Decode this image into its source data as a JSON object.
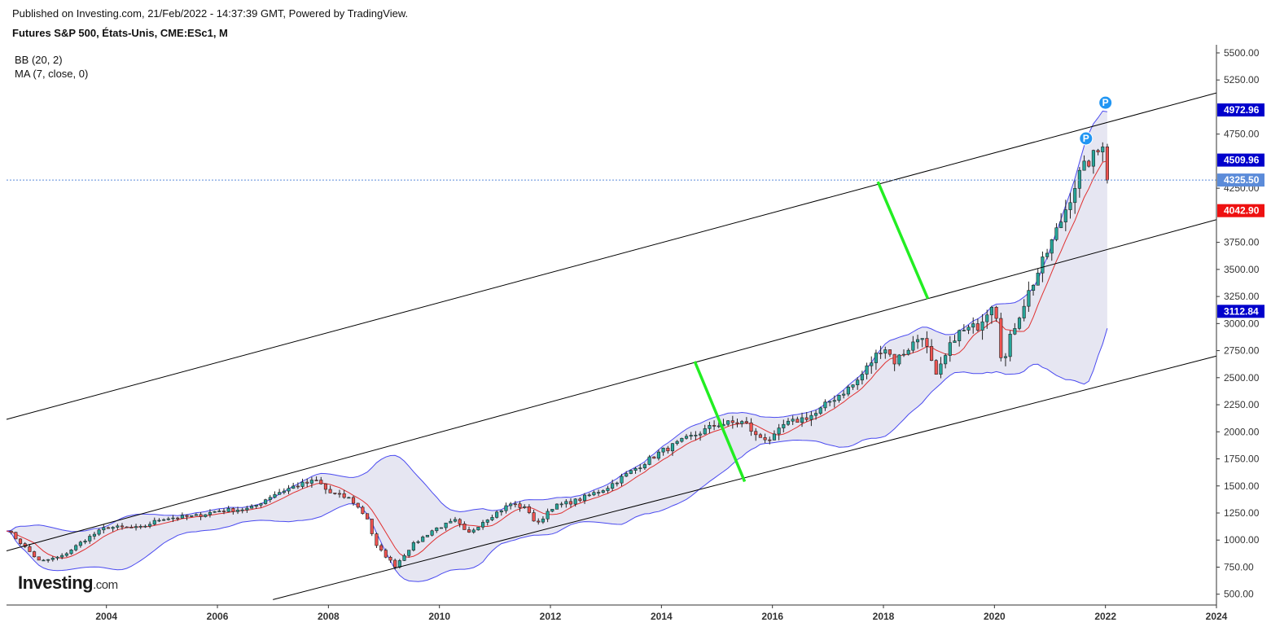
{
  "header": {
    "published": "Published on Investing.com, 21/Feb/2022 - 14:37:39 GMT, Powered by TradingView.",
    "symbol": "Futures S&P 500, États-Unis, CME:ESc1, M"
  },
  "indicators": [
    "BB (20, 2)",
    "MA (7, close, 0)"
  ],
  "logo": {
    "main": "Investing",
    "suffix": ".com"
  },
  "colors": {
    "up_candle": "#26a69a",
    "down_candle": "#ef5350",
    "bb_band": "#4a4af0",
    "bb_fill": "#e6e6f2",
    "ma_line": "#e03030",
    "channel": "#000000",
    "marker_green": "#22ee22",
    "price_line": "#5b8bd9"
  },
  "chart_data": {
    "type": "candlestick",
    "title": "Futures S&P 500, États-Unis, CME:ESc1, M",
    "interval": "monthly",
    "xlim": [
      2002.2,
      2024.0
    ],
    "ylim": [
      400,
      5575
    ],
    "y_ticks": [
      "5500.00",
      "5250.00",
      "4750.00",
      "4250.00",
      "3750.00",
      "3500.00",
      "3250.00",
      "3000.00",
      "2750.00",
      "2500.00",
      "2250.00",
      "2000.00",
      "1750.00",
      "1500.00",
      "1250.00",
      "1000.00",
      "750.00",
      "500.00"
    ],
    "x_ticks": [
      "2004",
      "2006",
      "2008",
      "2010",
      "2012",
      "2014",
      "2016",
      "2018",
      "2020",
      "2022",
      "2024"
    ],
    "price_anchors": [
      [
        2002.2,
        1100
      ],
      [
        2002.6,
        900
      ],
      [
        2002.8,
        800
      ],
      [
        2003.2,
        850
      ],
      [
        2003.6,
        1000
      ],
      [
        2004.0,
        1120
      ],
      [
        2004.6,
        1110
      ],
      [
        2005.0,
        1200
      ],
      [
        2005.6,
        1220
      ],
      [
        2006.0,
        1270
      ],
      [
        2006.6,
        1290
      ],
      [
        2007.0,
        1420
      ],
      [
        2007.4,
        1500
      ],
      [
        2007.8,
        1550
      ],
      [
        2008.0,
        1440
      ],
      [
        2008.4,
        1380
      ],
      [
        2008.7,
        1200
      ],
      [
        2008.85,
        950
      ],
      [
        2009.0,
        870
      ],
      [
        2009.2,
        760
      ],
      [
        2009.5,
        950
      ],
      [
        2009.9,
        1100
      ],
      [
        2010.3,
        1180
      ],
      [
        2010.5,
        1050
      ],
      [
        2010.8,
        1180
      ],
      [
        2011.3,
        1340
      ],
      [
        2011.6,
        1280
      ],
      [
        2011.75,
        1130
      ],
      [
        2012.0,
        1300
      ],
      [
        2012.5,
        1370
      ],
      [
        2013.0,
        1480
      ],
      [
        2013.5,
        1650
      ],
      [
        2014.0,
        1820
      ],
      [
        2014.6,
        1970
      ],
      [
        2015.0,
        2070
      ],
      [
        2015.5,
        2090
      ],
      [
        2015.7,
        1960
      ],
      [
        2016.0,
        1930
      ],
      [
        2016.2,
        2060
      ],
      [
        2016.8,
        2170
      ],
      [
        2017.0,
        2270
      ],
      [
        2017.5,
        2450
      ],
      [
        2018.0,
        2800
      ],
      [
        2018.2,
        2650
      ],
      [
        2018.7,
        2900
      ],
      [
        2018.95,
        2500
      ],
      [
        2019.3,
        2900
      ],
      [
        2019.7,
        2980
      ],
      [
        2020.0,
        3230
      ],
      [
        2020.15,
        2580
      ],
      [
        2020.3,
        2900
      ],
      [
        2020.6,
        3270
      ],
      [
        2020.9,
        3600
      ],
      [
        2021.2,
        3950
      ],
      [
        2021.5,
        4350
      ],
      [
        2021.7,
        4500
      ],
      [
        2021.9,
        4600
      ],
      [
        2022.0,
        4770
      ],
      [
        2022.1,
        4325
      ]
    ],
    "last_values": {
      "bb_upper": "4972.96",
      "bb_middle": "4509.96",
      "last_price": "4325.50",
      "ma": "4042.90",
      "bb_lower": "3112.84"
    },
    "annotations": {
      "channel_lines": [
        {
          "from": [
            2002.2,
            2115
          ],
          "to": [
            2024.0,
            5130
          ]
        },
        {
          "from": [
            2002.2,
            900
          ],
          "to": [
            2024.0,
            3960
          ]
        },
        {
          "from": [
            2007.0,
            450
          ],
          "to": [
            2024.0,
            2700
          ]
        }
      ],
      "green_segments": [
        {
          "from": [
            2014.6,
            2650
          ],
          "to": [
            2015.5,
            1540
          ]
        },
        {
          "from": [
            2017.9,
            4310
          ],
          "to": [
            2018.8,
            3230
          ]
        }
      ],
      "markers": [
        {
          "label": "P",
          "at": [
            2021.65,
            4710
          ]
        },
        {
          "label": "P",
          "at": [
            2022.0,
            5040
          ]
        }
      ]
    }
  }
}
